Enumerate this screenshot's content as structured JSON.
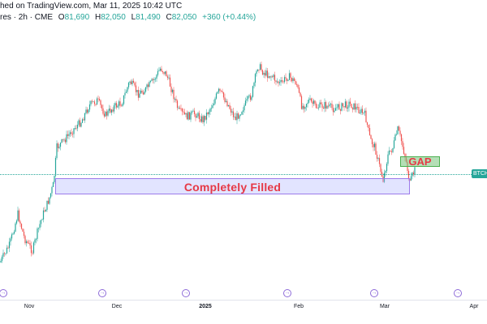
{
  "header": {
    "line1_text": "hed on TradingView.com, Mar 11, 2025 10:42 UTC",
    "line2_prefix": "res · 2h · CME",
    "ohlc": {
      "o_label": "O",
      "o_value": "81,690",
      "h_label": "H",
      "h_value": "82,050",
      "l_label": "L",
      "l_value": "81,490",
      "c_label": "C",
      "c_value": "82,050",
      "change": "+360 (+0.44%)"
    }
  },
  "price_tag": {
    "label": "BTCH",
    "color": "#26a69a"
  },
  "annotations": {
    "filled_zone_label": "Completely Filled",
    "gap_label": "GAP"
  },
  "time_axis": {
    "labels": [
      {
        "text": "Nov",
        "bold": false
      },
      {
        "text": "Dec",
        "bold": false
      },
      {
        "text": "2025",
        "bold": true
      },
      {
        "text": "Feb",
        "bold": false
      },
      {
        "text": "Mar",
        "bold": false
      },
      {
        "text": "Apr",
        "bold": false
      }
    ]
  },
  "events": {
    "icon_name": "event-marker-icon",
    "count": 6
  },
  "colors": {
    "up": "#26a69a",
    "down": "#ef5350",
    "filled_zone_border": "#9c7bea",
    "gap_box": "#76c47a",
    "annotation_text": "#e63946"
  }
}
